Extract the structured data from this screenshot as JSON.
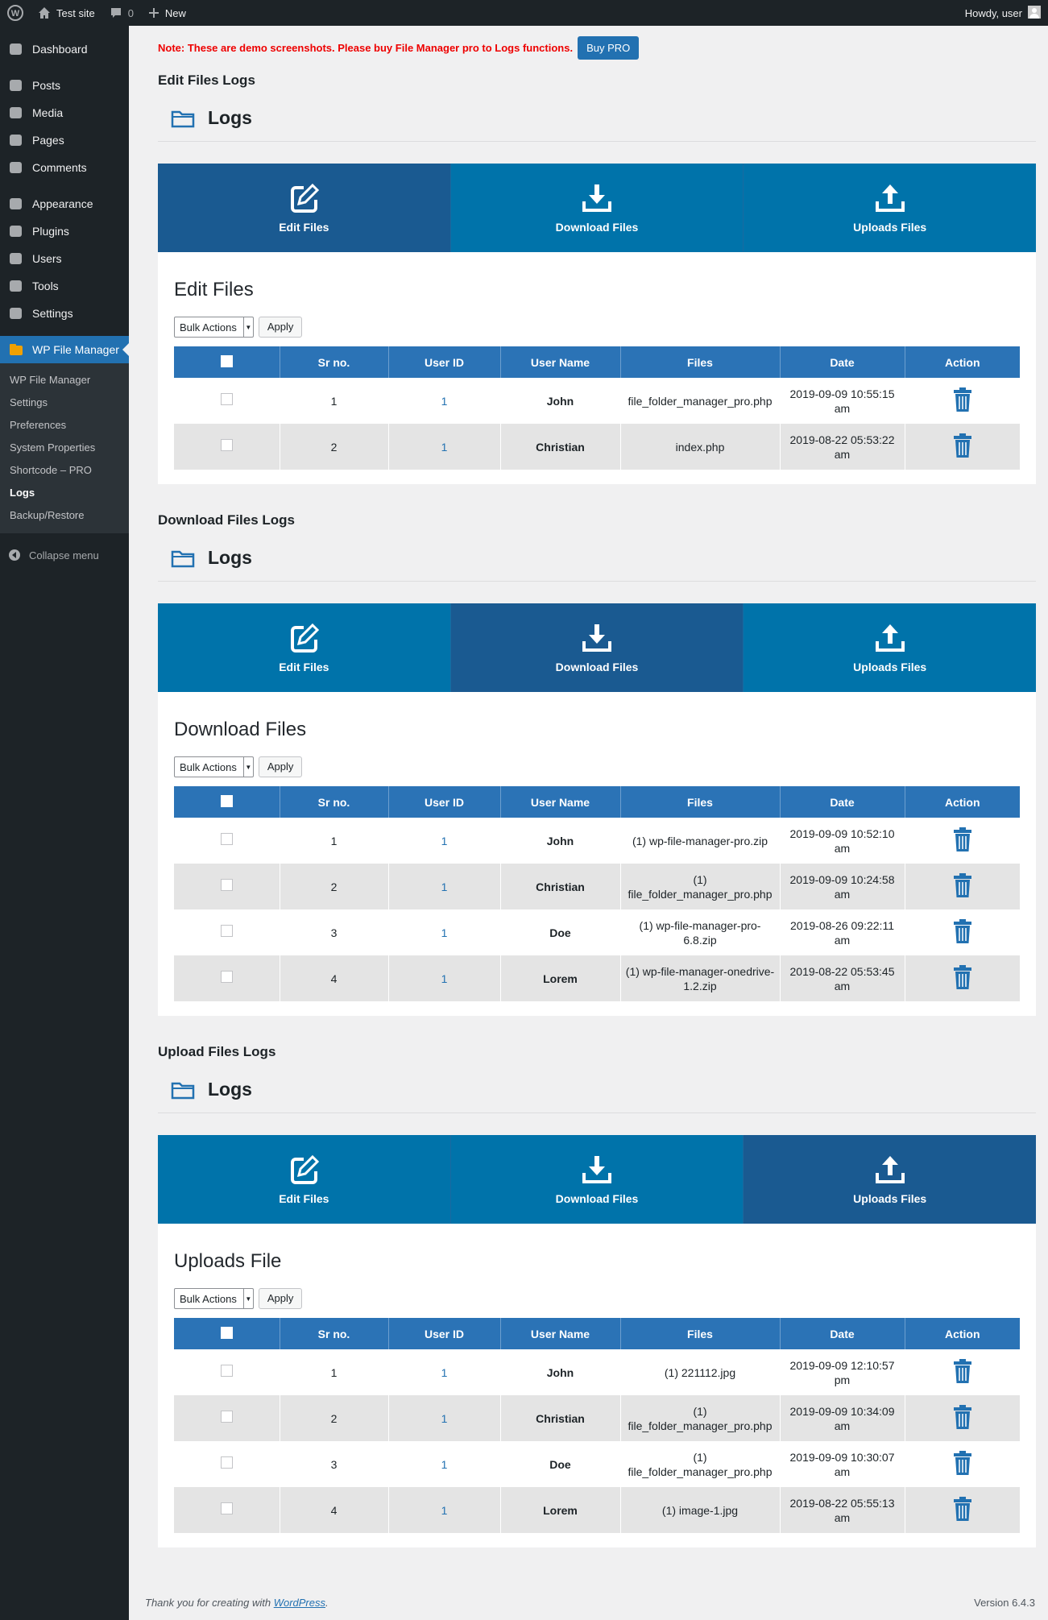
{
  "admin_bar": {
    "site": "Test site",
    "comments": "0",
    "new": "New",
    "howdy": "Howdy, user"
  },
  "sidebar": {
    "menu": [
      [
        "Dashboard",
        "Posts",
        "Media",
        "Pages",
        "Comments"
      ],
      [
        "Appearance",
        "Plugins",
        "Users",
        "Tools",
        "Settings"
      ]
    ],
    "active": "WP File Manager",
    "submenu": [
      "WP File Manager",
      "Settings",
      "Preferences",
      "System Properties",
      "Shortcode – PRO",
      "Logs",
      "Backup/Restore"
    ],
    "current_submenu": 5,
    "collapse": "Collapse menu"
  },
  "notice": {
    "text": "Note: These are demo screenshots. Please buy File Manager pro to Logs functions.",
    "button": "Buy PRO"
  },
  "sections": [
    {
      "title": "Edit Files Logs",
      "logs_heading": "Logs",
      "tabs": [
        "Edit Files",
        "Download Files",
        "Uploads Files"
      ],
      "active_tab": 0,
      "heading": "Edit Files",
      "bulk_actions": "Bulk Actions",
      "apply": "Apply",
      "columns": [
        "Sr no.",
        "User ID",
        "User Name",
        "Files",
        "Date",
        "Action"
      ],
      "rows": [
        [
          1,
          1,
          "John",
          "file_folder_manager_pro.php",
          "2019-09-09 10:55:15 am"
        ],
        [
          2,
          1,
          "Christian",
          "index.php",
          "2019-08-22 05:53:22 am"
        ]
      ]
    },
    {
      "title": "Download Files Logs",
      "logs_heading": "Logs",
      "tabs": [
        "Edit Files",
        "Download Files",
        "Uploads Files"
      ],
      "active_tab": 1,
      "heading": "Download Files",
      "bulk_actions": "Bulk Actions",
      "apply": "Apply",
      "columns": [
        "Sr no.",
        "User ID",
        "User Name",
        "Files",
        "Date",
        "Action"
      ],
      "rows": [
        [
          1,
          1,
          "John",
          "(1) wp-file-manager-pro.zip",
          "2019-09-09 10:52:10 am"
        ],
        [
          2,
          1,
          "Christian",
          "(1) file_folder_manager_pro.php",
          "2019-09-09 10:24:58 am"
        ],
        [
          3,
          1,
          "Doe",
          "(1) wp-file-manager-pro-6.8.zip",
          "2019-08-26 09:22:11 am"
        ],
        [
          4,
          1,
          "Lorem",
          "(1) wp-file-manager-onedrive-1.2.zip",
          "2019-08-22 05:53:45 am"
        ]
      ]
    },
    {
      "title": "Upload Files Logs",
      "logs_heading": "Logs",
      "tabs": [
        "Edit Files",
        "Download Files",
        "Uploads Files"
      ],
      "active_tab": 2,
      "heading": "Uploads File",
      "bulk_actions": "Bulk Actions",
      "apply": "Apply",
      "columns": [
        "Sr no.",
        "User ID",
        "User Name",
        "Files",
        "Date",
        "Action"
      ],
      "rows": [
        [
          1,
          1,
          "John",
          "(1) 221112.jpg",
          "2019-09-09 12:10:57 pm"
        ],
        [
          2,
          1,
          "Christian",
          "(1) file_folder_manager_pro.php",
          "2019-09-09 10:34:09 am"
        ],
        [
          3,
          1,
          "Doe",
          "(1) file_folder_manager_pro.php",
          "2019-09-09 10:30:07 am"
        ],
        [
          4,
          1,
          "Lorem",
          "(1) image-1.jpg",
          "2019-08-22 05:55:13 am"
        ]
      ]
    }
  ],
  "footer": {
    "thanks": "Thank you for creating with",
    "link": "WordPress",
    "period": ".",
    "version": "Version 6.4.3"
  }
}
